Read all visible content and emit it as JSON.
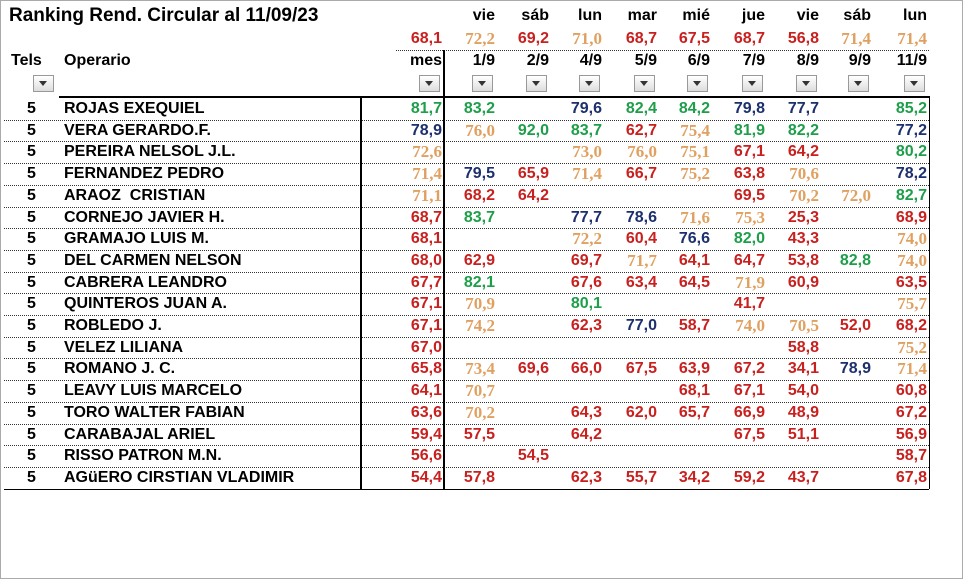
{
  "title": "Ranking Rend. Circular al 11/09/23",
  "days": [
    "vie",
    "sáb",
    "lun",
    "mar",
    "mié",
    "jue",
    "vie",
    "sáb",
    "lun"
  ],
  "averages": {
    "values": [
      "68,1",
      "72,2",
      "69,2",
      "71,0",
      "68,7",
      "67,5",
      "68,7",
      "56,8",
      "71,4",
      "71,4"
    ],
    "colors": [
      "#c8201e",
      "#e0a060",
      "#c8201e",
      "#e0a060",
      "#c8201e",
      "#c8201e",
      "#c8201e",
      "#c8201e",
      "#e0a060",
      "#e0a060"
    ]
  },
  "headers": {
    "tels": "Tels",
    "name": "Operario",
    "columns": [
      "mes",
      "1/9",
      "2/9",
      "4/9",
      "5/9",
      "6/9",
      "7/9",
      "8/9",
      "9/9",
      "11/9"
    ]
  },
  "rows": [
    {
      "tels": "5",
      "name": "ROJAS EXEQUIEL",
      "values": [
        "81,7",
        "83,2",
        null,
        "79,6",
        "82,4",
        "84,2",
        "79,8",
        "77,7",
        null,
        "85,2"
      ],
      "colors": [
        "#1e9e4a",
        "#1e9e4a",
        null,
        "#1c2f6e",
        "#1e9e4a",
        "#1e9e4a",
        "#1c2f6e",
        "#1c2f6e",
        null,
        "#1e9e4a"
      ]
    },
    {
      "tels": "5",
      "name": "VERA GERARDO.F.",
      "values": [
        "78,9",
        "76,0",
        "92,0",
        "83,7",
        "62,7",
        "75,4",
        "81,9",
        "82,2",
        null,
        "77,2"
      ],
      "colors": [
        "#1c2f6e",
        "#e0a060",
        "#1e9e4a",
        "#1e9e4a",
        "#c8201e",
        "#e0a060",
        "#1e9e4a",
        "#1e9e4a",
        null,
        "#1c2f6e"
      ]
    },
    {
      "tels": "5",
      "name": "PEREIRA NELSOL J.L.",
      "values": [
        "72,6",
        null,
        null,
        "73,0",
        "76,0",
        "75,1",
        "67,1",
        "64,2",
        null,
        "80,2"
      ],
      "colors": [
        "#e0a060",
        null,
        null,
        "#e0a060",
        "#e0a060",
        "#e0a060",
        "#c8201e",
        "#c8201e",
        null,
        "#1e9e4a"
      ]
    },
    {
      "tels": "5",
      "name": "FERNANDEZ PEDRO",
      "values": [
        "71,4",
        "79,5",
        "65,9",
        "71,4",
        "66,7",
        "75,2",
        "63,8",
        "70,6",
        null,
        "78,2"
      ],
      "colors": [
        "#e0a060",
        "#1c2f6e",
        "#c8201e",
        "#e0a060",
        "#c8201e",
        "#e0a060",
        "#c8201e",
        "#e0a060",
        null,
        "#1c2f6e"
      ]
    },
    {
      "tels": "5",
      "name": "ARAOZ  CRISTIAN",
      "values": [
        "71,1",
        "68,2",
        "64,2",
        null,
        null,
        null,
        "69,5",
        "70,2",
        "72,0",
        "82,7"
      ],
      "colors": [
        "#e0a060",
        "#c8201e",
        "#c8201e",
        null,
        null,
        null,
        "#c8201e",
        "#e0a060",
        "#e0a060",
        "#1e9e4a"
      ]
    },
    {
      "tels": "5",
      "name": "CORNEJO JAVIER H.",
      "values": [
        "68,7",
        "83,7",
        null,
        "77,7",
        "78,6",
        "71,6",
        "75,3",
        "25,3",
        null,
        "68,9"
      ],
      "colors": [
        "#c8201e",
        "#1e9e4a",
        null,
        "#1c2f6e",
        "#1c2f6e",
        "#e0a060",
        "#e0a060",
        "#c8201e",
        null,
        "#c8201e"
      ]
    },
    {
      "tels": "5",
      "name": "GRAMAJO LUIS M.",
      "values": [
        "68,1",
        null,
        null,
        "72,2",
        "60,4",
        "76,6",
        "82,0",
        "43,3",
        null,
        "74,0"
      ],
      "colors": [
        "#c8201e",
        null,
        null,
        "#e0a060",
        "#c8201e",
        "#1c2f6e",
        "#1e9e4a",
        "#c8201e",
        null,
        "#e0a060"
      ]
    },
    {
      "tels": "5",
      "name": "DEL CARMEN NELSON",
      "values": [
        "68,0",
        "62,9",
        null,
        "69,7",
        "71,7",
        "64,1",
        "64,7",
        "53,8",
        "82,8",
        "74,0"
      ],
      "colors": [
        "#c8201e",
        "#c8201e",
        null,
        "#c8201e",
        "#e0a060",
        "#c8201e",
        "#c8201e",
        "#c8201e",
        "#1e9e4a",
        "#e0a060"
      ]
    },
    {
      "tels": "5",
      "name": "CABRERA LEANDRO",
      "values": [
        "67,7",
        "82,1",
        null,
        "67,6",
        "63,4",
        "64,5",
        "71,9",
        "60,9",
        null,
        "63,5"
      ],
      "colors": [
        "#c8201e",
        "#1e9e4a",
        null,
        "#c8201e",
        "#c8201e",
        "#c8201e",
        "#e0a060",
        "#c8201e",
        null,
        "#c8201e"
      ]
    },
    {
      "tels": "5",
      "name": "QUINTEROS JUAN A.",
      "values": [
        "67,1",
        "70,9",
        null,
        "80,1",
        null,
        null,
        "41,7",
        null,
        null,
        "75,7"
      ],
      "colors": [
        "#c8201e",
        "#e0a060",
        null,
        "#1e9e4a",
        null,
        null,
        "#c8201e",
        null,
        null,
        "#e0a060"
      ]
    },
    {
      "tels": "5",
      "name": "ROBLEDO J.",
      "values": [
        "67,1",
        "74,2",
        null,
        "62,3",
        "77,0",
        "58,7",
        "74,0",
        "70,5",
        "52,0",
        "68,2"
      ],
      "colors": [
        "#c8201e",
        "#e0a060",
        null,
        "#c8201e",
        "#1c2f6e",
        "#c8201e",
        "#e0a060",
        "#e0a060",
        "#c8201e",
        "#c8201e"
      ]
    },
    {
      "tels": "5",
      "name": "VELEZ LILIANA",
      "values": [
        "67,0",
        null,
        null,
        null,
        null,
        null,
        null,
        "58,8",
        null,
        "75,2"
      ],
      "colors": [
        "#c8201e",
        null,
        null,
        null,
        null,
        null,
        null,
        "#c8201e",
        null,
        "#e0a060"
      ]
    },
    {
      "tels": "5",
      "name": "ROMANO J. C.",
      "values": [
        "65,8",
        "73,4",
        "69,6",
        "66,0",
        "67,5",
        "63,9",
        "67,2",
        "34,1",
        "78,9",
        "71,4"
      ],
      "colors": [
        "#c8201e",
        "#e0a060",
        "#c8201e",
        "#c8201e",
        "#c8201e",
        "#c8201e",
        "#c8201e",
        "#c8201e",
        "#1c2f6e",
        "#e0a060"
      ]
    },
    {
      "tels": "5",
      "name": "LEAVY LUIS MARCELO",
      "values": [
        "64,1",
        "70,7",
        null,
        null,
        null,
        "68,1",
        "67,1",
        "54,0",
        null,
        "60,8"
      ],
      "colors": [
        "#c8201e",
        "#e0a060",
        null,
        null,
        null,
        "#c8201e",
        "#c8201e",
        "#c8201e",
        null,
        "#c8201e"
      ]
    },
    {
      "tels": "5",
      "name": "TORO WALTER FABIAN",
      "values": [
        "63,6",
        "70,2",
        null,
        "64,3",
        "62,0",
        "65,7",
        "66,9",
        "48,9",
        null,
        "67,2"
      ],
      "colors": [
        "#c8201e",
        "#e0a060",
        null,
        "#c8201e",
        "#c8201e",
        "#c8201e",
        "#c8201e",
        "#c8201e",
        null,
        "#c8201e"
      ]
    },
    {
      "tels": "5",
      "name": "CARABAJAL ARIEL",
      "values": [
        "59,4",
        "57,5",
        null,
        "64,2",
        null,
        null,
        "67,5",
        "51,1",
        null,
        "56,9"
      ],
      "colors": [
        "#c8201e",
        "#c8201e",
        null,
        "#c8201e",
        null,
        null,
        "#c8201e",
        "#c8201e",
        null,
        "#c8201e"
      ]
    },
    {
      "tels": "5",
      "name": "RISSO PATRON M.N.",
      "values": [
        "56,6",
        null,
        "54,5",
        null,
        null,
        null,
        null,
        null,
        null,
        "58,7"
      ],
      "colors": [
        "#c8201e",
        null,
        "#c8201e",
        null,
        null,
        null,
        null,
        null,
        null,
        "#c8201e"
      ]
    },
    {
      "tels": "5",
      "name": "AGüERO CIRSTIAN VLADIMIR",
      "values": [
        "54,4",
        "57,8",
        null,
        "62,3",
        "55,7",
        "34,2",
        "59,2",
        "43,7",
        null,
        "67,8"
      ],
      "colors": [
        "#c8201e",
        "#c8201e",
        null,
        "#c8201e",
        "#c8201e",
        "#c8201e",
        "#c8201e",
        "#c8201e",
        null,
        "#c8201e"
      ]
    }
  ]
}
